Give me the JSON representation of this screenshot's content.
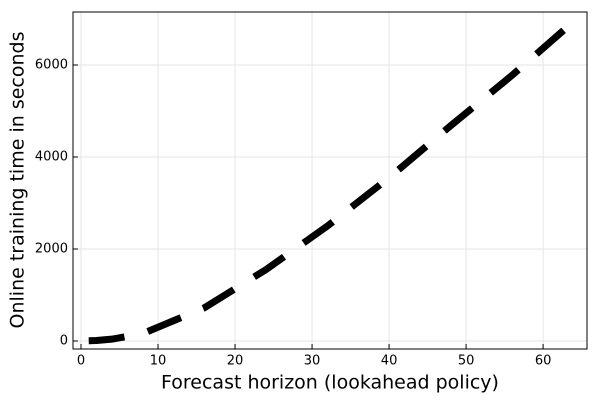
{
  "chart_data": {
    "type": "line",
    "x_label": "Forecast horizon (lookahead policy)",
    "y_label": "Online training time in seconds",
    "x": [
      1,
      2,
      4,
      8,
      16,
      24,
      32,
      40,
      48,
      56,
      64
    ],
    "series": [
      {
        "color": "#000000",
        "values": [
          5,
          10,
          40,
          160,
          720,
          1550,
          2500,
          3550,
          4680,
          5780,
          6950
        ]
      }
    ],
    "xlim": [
      -1.04,
      65.7
    ],
    "xticks": [
      0,
      10,
      20,
      30,
      40,
      50,
      60
    ],
    "ylim": [
      -174,
      7152
    ],
    "yticks": [
      0,
      2000,
      4000,
      6000
    ],
    "grid": true
  }
}
